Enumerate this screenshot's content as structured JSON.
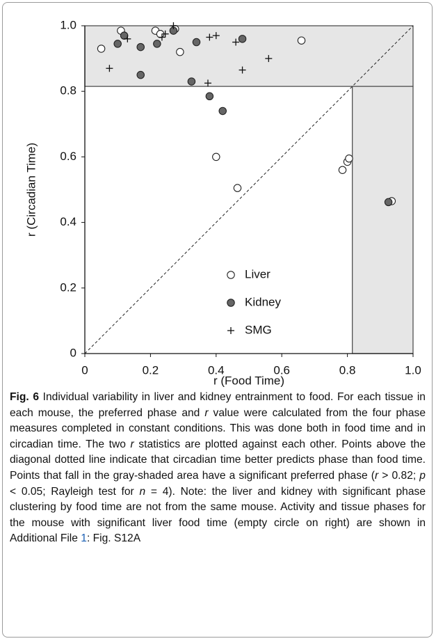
{
  "chart_data": {
    "type": "scatter",
    "xlabel": "r (Food Time)",
    "ylabel": "r (Circadian Time)",
    "xlim": [
      0,
      1
    ],
    "ylim": [
      0,
      1
    ],
    "xticks": [
      0,
      0.2,
      0.4,
      0.6,
      0.8,
      {
        "value": 1,
        "label": "1.0"
      }
    ],
    "yticks": [
      0,
      0.2,
      0.4,
      0.6,
      0.8,
      {
        "value": 1,
        "label": "1.0"
      }
    ],
    "threshold": 0.815,
    "shade_color": "#e6e6e6",
    "legend": "lower center",
    "series": [
      {
        "name": "Liver",
        "marker": "open-circle",
        "color": "#ffffff",
        "x": [
          0.05,
          0.11,
          0.215,
          0.23,
          0.275,
          0.29,
          0.66,
          0.4,
          0.465,
          0.785,
          0.8,
          0.805,
          0.935
        ],
        "y": [
          0.93,
          0.985,
          0.985,
          0.975,
          0.99,
          0.92,
          0.955,
          0.6,
          0.505,
          0.56,
          0.585,
          0.595,
          0.465
        ]
      },
      {
        "name": "Kidney",
        "marker": "filled-circle",
        "color": "#666666",
        "x": [
          0.1,
          0.12,
          0.17,
          0.17,
          0.22,
          0.27,
          0.34,
          0.48,
          0.325,
          0.38,
          0.42,
          0.925
        ],
        "y": [
          0.945,
          0.97,
          0.935,
          0.85,
          0.945,
          0.985,
          0.95,
          0.96,
          0.83,
          0.785,
          0.74,
          0.462
        ]
      },
      {
        "name": "SMG",
        "marker": "plus",
        "color": "#111111",
        "x": [
          0.075,
          0.13,
          0.235,
          0.245,
          0.27,
          0.375,
          0.38,
          0.4,
          0.46,
          0.48,
          0.56
        ],
        "y": [
          0.87,
          0.96,
          0.965,
          0.975,
          1.0,
          0.825,
          0.965,
          0.97,
          0.95,
          0.865,
          0.9
        ]
      }
    ]
  },
  "caption": {
    "segments": [
      {
        "text": "Fig. 6",
        "style": "bold"
      },
      {
        "text": " Individual variability in liver and kidney entrainment to food. For each tissue in each mouse, the preferred phase and ",
        "style": "normal"
      },
      {
        "text": "r",
        "style": "italic"
      },
      {
        "text": " value were calculated from the four phase measures completed in constant conditions. This was done both in food time and in circadian time. The two ",
        "style": "normal"
      },
      {
        "text": "r",
        "style": "italic"
      },
      {
        "text": " statistics are plotted against each other. Points above the diagonal dotted line indicate that circadian time better predicts phase than food time. Points that fall in the gray-shaded area have a significant preferred phase (",
        "style": "normal"
      },
      {
        "text": "r",
        "style": "italic"
      },
      {
        "text": " > 0.82; ",
        "style": "normal"
      },
      {
        "text": "p",
        "style": "italic"
      },
      {
        "text": " < 0.05; Rayleigh test for ",
        "style": "normal"
      },
      {
        "text": "n",
        "style": "italic"
      },
      {
        "text": " = 4). Note: the liver and kidney with significant phase clustering by food time are not from the same mouse. Activity and tissue phases for the mouse with significant liver food time (empty circle on right) are shown in Additional File ",
        "style": "normal"
      },
      {
        "text": "1",
        "style": "link"
      },
      {
        "text": ": Fig. S12A",
        "style": "normal"
      }
    ]
  }
}
